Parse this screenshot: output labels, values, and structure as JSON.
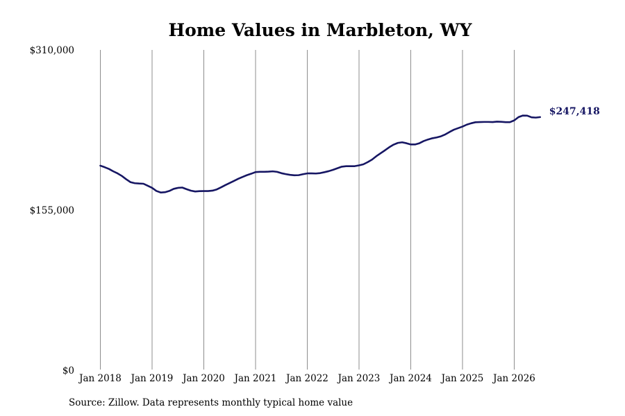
{
  "chart_data": {
    "type": "line",
    "title": "Home Values in Marbleton, WY",
    "xlabel": "",
    "ylabel": "",
    "ylim": [
      0,
      310000
    ],
    "y_ticks": [
      {
        "value": 0,
        "label": "$0"
      },
      {
        "value": 155000,
        "label": "$155,000"
      },
      {
        "value": 310000,
        "label": "$310,000"
      }
    ],
    "x_ticks": [
      "Jan 2018",
      "Jan 2019",
      "Jan 2020",
      "Jan 2021",
      "Jan 2022",
      "Jan 2023",
      "Jan 2024",
      "Jan 2025",
      "Jan 2026"
    ],
    "xlim": [
      "2018-01",
      "2026-07"
    ],
    "grid": "vertical at x ticks",
    "line_color": "#161663",
    "end_label": "$247,418",
    "series": [
      {
        "points": [
          [
            "2018-01",
            198000
          ],
          [
            "2018-02",
            196500
          ],
          [
            "2018-03",
            194800
          ],
          [
            "2018-04",
            192500
          ],
          [
            "2018-05",
            190500
          ],
          [
            "2018-06",
            188000
          ],
          [
            "2018-07",
            184800
          ],
          [
            "2018-08",
            182000
          ],
          [
            "2018-09",
            181000
          ],
          [
            "2018-10",
            180700
          ],
          [
            "2018-11",
            180500
          ],
          [
            "2018-12",
            178500
          ],
          [
            "2019-01",
            176500
          ],
          [
            "2019-02",
            173500
          ],
          [
            "2019-03",
            172000
          ],
          [
            "2019-04",
            172300
          ],
          [
            "2019-05",
            173500
          ],
          [
            "2019-06",
            175500
          ],
          [
            "2019-07",
            176500
          ],
          [
            "2019-08",
            176800
          ],
          [
            "2019-09",
            175200
          ],
          [
            "2019-10",
            173800
          ],
          [
            "2019-11",
            173000
          ],
          [
            "2019-12",
            173300
          ],
          [
            "2020-01",
            173400
          ],
          [
            "2020-02",
            173400
          ],
          [
            "2020-03",
            173800
          ],
          [
            "2020-04",
            175000
          ],
          [
            "2020-05",
            177000
          ],
          [
            "2020-06",
            179200
          ],
          [
            "2020-07",
            181200
          ],
          [
            "2020-08",
            183200
          ],
          [
            "2020-09",
            185300
          ],
          [
            "2020-10",
            187100
          ],
          [
            "2020-11",
            188800
          ],
          [
            "2020-12",
            190200
          ],
          [
            "2021-01",
            191800
          ],
          [
            "2021-02",
            192000
          ],
          [
            "2021-03",
            192000
          ],
          [
            "2021-04",
            192200
          ],
          [
            "2021-05",
            192500
          ],
          [
            "2021-06",
            192000
          ],
          [
            "2021-07",
            190700
          ],
          [
            "2021-08",
            189800
          ],
          [
            "2021-09",
            189100
          ],
          [
            "2021-10",
            188700
          ],
          [
            "2021-11",
            188800
          ],
          [
            "2021-12",
            189700
          ],
          [
            "2022-01",
            190500
          ],
          [
            "2022-02",
            190500
          ],
          [
            "2022-03",
            190400
          ],
          [
            "2022-04",
            190800
          ],
          [
            "2022-05",
            191700
          ],
          [
            "2022-06",
            192700
          ],
          [
            "2022-07",
            194000
          ],
          [
            "2022-08",
            195500
          ],
          [
            "2022-09",
            197000
          ],
          [
            "2022-10",
            197500
          ],
          [
            "2022-11",
            197500
          ],
          [
            "2022-12",
            197500
          ],
          [
            "2023-01",
            198300
          ],
          [
            "2023-02",
            199300
          ],
          [
            "2023-03",
            201400
          ],
          [
            "2023-04",
            203800
          ],
          [
            "2023-05",
            207100
          ],
          [
            "2023-06",
            210000
          ],
          [
            "2023-07",
            212800
          ],
          [
            "2023-08",
            215800
          ],
          [
            "2023-09",
            218300
          ],
          [
            "2023-10",
            220000
          ],
          [
            "2023-11",
            220600
          ],
          [
            "2023-12",
            219700
          ],
          [
            "2024-01",
            218500
          ],
          [
            "2024-02",
            218500
          ],
          [
            "2024-03",
            219700
          ],
          [
            "2024-04",
            221800
          ],
          [
            "2024-05",
            223300
          ],
          [
            "2024-06",
            224500
          ],
          [
            "2024-07",
            225300
          ],
          [
            "2024-08",
            226400
          ],
          [
            "2024-09",
            228200
          ],
          [
            "2024-10",
            230600
          ],
          [
            "2024-11",
            232800
          ],
          [
            "2024-12",
            234300
          ],
          [
            "2025-01",
            235800
          ],
          [
            "2025-02",
            237700
          ],
          [
            "2025-03",
            239000
          ],
          [
            "2025-04",
            240000
          ],
          [
            "2025-05",
            240200
          ],
          [
            "2025-06",
            240300
          ],
          [
            "2025-07",
            240300
          ],
          [
            "2025-08",
            240200
          ],
          [
            "2025-09",
            240600
          ],
          [
            "2025-10",
            240400
          ],
          [
            "2025-11",
            240100
          ],
          [
            "2025-12",
            240100
          ],
          [
            "2026-01",
            241800
          ],
          [
            "2026-02",
            245000
          ],
          [
            "2026-03",
            246500
          ],
          [
            "2026-04",
            246400
          ],
          [
            "2026-05",
            244800
          ],
          [
            "2026-06",
            244500
          ],
          [
            "2026-07",
            245000
          ]
        ]
      }
    ]
  },
  "footer": {
    "source": "Source: Zillow. Data represents monthly typical home value"
  }
}
